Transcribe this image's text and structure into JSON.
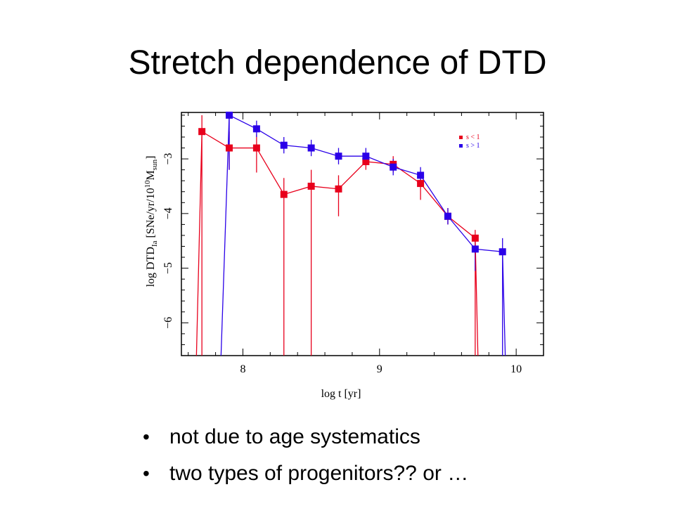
{
  "slide": {
    "title": "Stretch dependence of DTD",
    "bullets": [
      "not due to age systematics",
      "two types of progenitors?? or …"
    ]
  },
  "chart_data": {
    "type": "scatter",
    "xlabel": "log t [yr]",
    "ylabel": "log DTD_Ia [SNe/yr/10^10 M_sun]",
    "xlim": [
      7.55,
      10.2
    ],
    "ylim": [
      -6.6,
      -2.15
    ],
    "xticks": [
      8,
      9,
      10
    ],
    "yticks": [
      -3,
      -4,
      -5,
      -6
    ],
    "grid": false,
    "legend_position": "top-right",
    "series": [
      {
        "name": "s < 1",
        "color": "#e8001c",
        "points": [
          {
            "x": 7.7,
            "y": -2.5,
            "lo": -6.6,
            "hi": -2.2
          },
          {
            "x": 7.9,
            "y": -2.8,
            "lo": -3.2,
            "hi": -2.5
          },
          {
            "x": 8.1,
            "y": -2.8,
            "lo": -3.25,
            "hi": -2.55
          },
          {
            "x": 8.3,
            "y": -3.65,
            "lo": -6.6,
            "hi": -3.35
          },
          {
            "x": 8.5,
            "y": -3.5,
            "lo": -6.6,
            "hi": -3.2
          },
          {
            "x": 8.7,
            "y": -3.55,
            "lo": -4.05,
            "hi": -3.3
          },
          {
            "x": 8.9,
            "y": -3.05,
            "lo": -3.2,
            "hi": -2.9
          },
          {
            "x": 9.1,
            "y": -3.1,
            "lo": -3.25,
            "hi": -2.95
          },
          {
            "x": 9.3,
            "y": -3.45,
            "lo": -3.75,
            "hi": -3.3
          },
          {
            "x": 9.5,
            "y": -4.05,
            "lo": -4.2,
            "hi": -3.9
          },
          {
            "x": 9.7,
            "y": -4.45,
            "lo": -6.6,
            "hi": -4.3
          }
        ]
      },
      {
        "name": "s > 1",
        "color": "#2a00e8",
        "points": [
          {
            "x": 7.9,
            "y": -2.2,
            "lo": -3.2,
            "hi": -2.15
          },
          {
            "x": 8.1,
            "y": -2.45,
            "lo": -2.6,
            "hi": -2.3
          },
          {
            "x": 8.3,
            "y": -2.75,
            "lo": -2.9,
            "hi": -2.6
          },
          {
            "x": 8.5,
            "y": -2.8,
            "lo": -2.95,
            "hi": -2.65
          },
          {
            "x": 8.7,
            "y": -2.95,
            "lo": -3.1,
            "hi": -2.8
          },
          {
            "x": 8.9,
            "y": -2.95,
            "lo": -3.1,
            "hi": -2.8
          },
          {
            "x": 9.1,
            "y": -3.15,
            "lo": -3.3,
            "hi": -3.0
          },
          {
            "x": 9.3,
            "y": -3.3,
            "lo": -3.45,
            "hi": -3.15
          },
          {
            "x": 9.5,
            "y": -4.05,
            "lo": -4.2,
            "hi": -3.9
          },
          {
            "x": 9.7,
            "y": -4.65,
            "lo": -5.05,
            "hi": -4.45
          },
          {
            "x": 9.9,
            "y": -4.7,
            "lo": -6.6,
            "hi": -4.45
          }
        ],
        "leading_drop": {
          "x_from": 7.9,
          "x_to": 7.85
        }
      }
    ]
  }
}
